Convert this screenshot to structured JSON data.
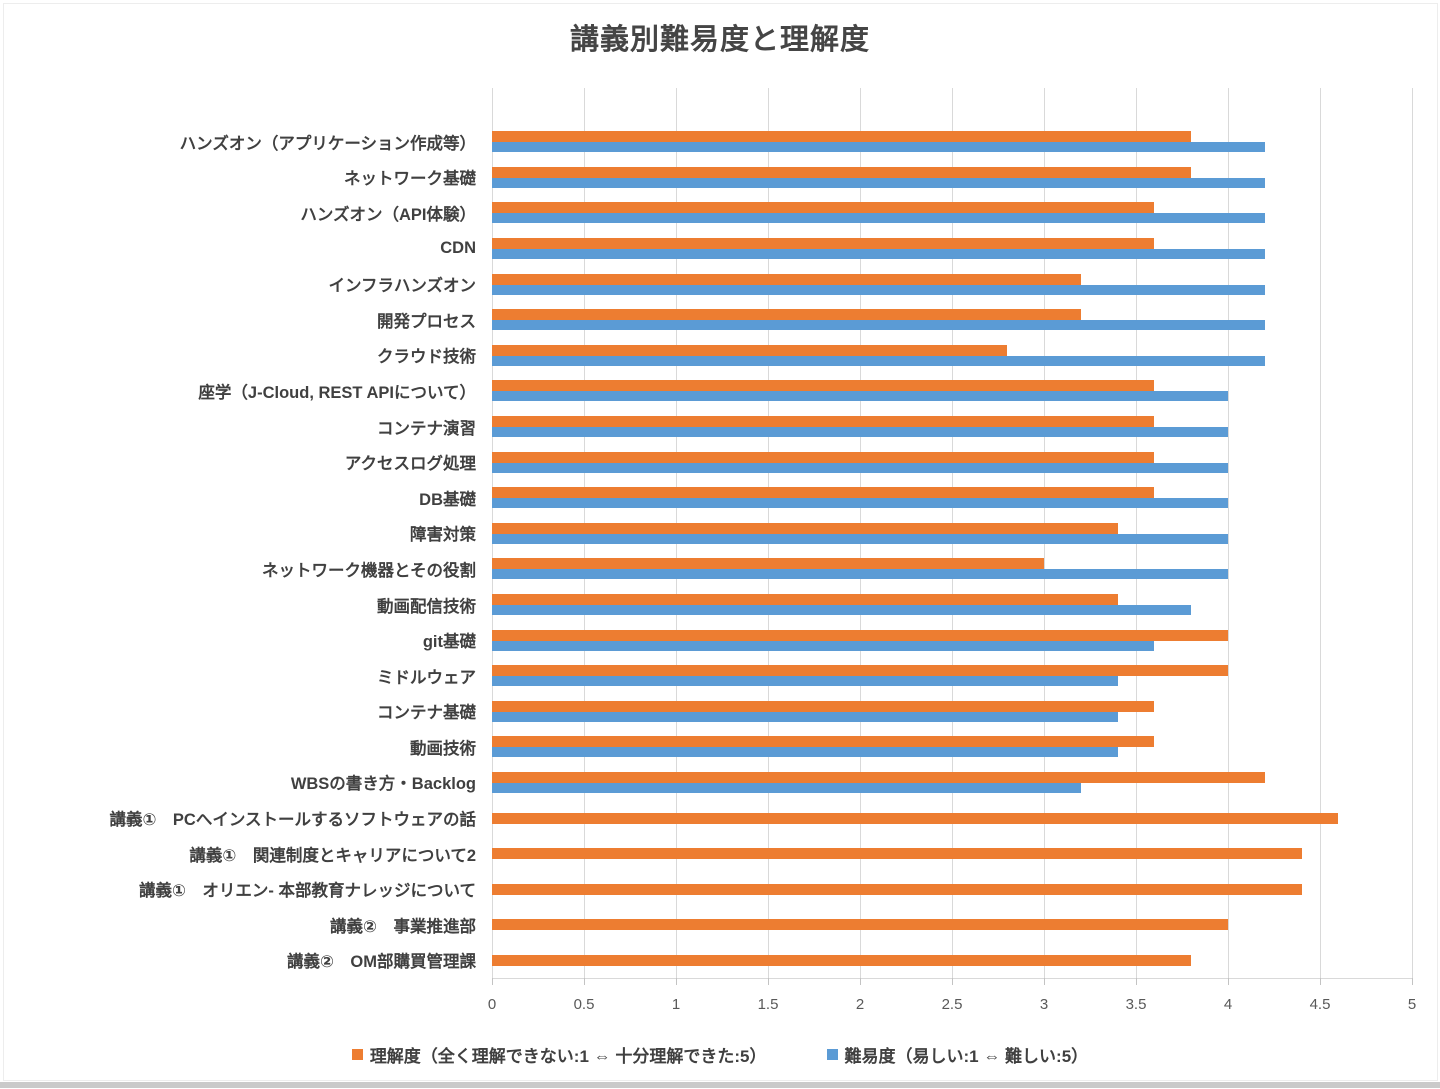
{
  "title": "講義別難易度と理解度",
  "chart_data": {
    "type": "bar",
    "orientation": "horizontal",
    "title": "講義別難易度と理解度",
    "categories": [
      "ハンズオン（アプリケーション作成等）",
      "ネットワーク基礎",
      "ハンズオン（API体験）",
      "CDN",
      "インフラハンズオン",
      "開発プロセス",
      "クラウド技術",
      "座学（J-Cloud, REST APIについて）",
      "コンテナ演習",
      "アクセスログ処理",
      "DB基礎",
      "障害対策",
      "ネットワーク機器とその役割",
      "動画配信技術",
      "git基礎",
      "ミドルウェア",
      "コンテナ基礎",
      "動画技術",
      "WBSの書き方・Backlog",
      "講義①　PCへインストールするソフトウェアの話",
      "講義①　関連制度とキャリアについて2",
      "講義①　オリエン- 本部教育ナレッジについて",
      "講義②　事業推進部",
      "講義②　OM部購買管理課"
    ],
    "series": [
      {
        "name": "理解度（全く理解できない:1 ⇔ 十分理解できた:5）",
        "color": "#ED7D31",
        "values": [
          3.8,
          3.8,
          3.6,
          3.6,
          3.2,
          3.2,
          2.8,
          3.6,
          3.6,
          3.6,
          3.6,
          3.4,
          3.0,
          3.4,
          4.0,
          4.0,
          3.6,
          3.6,
          4.2,
          4.6,
          4.4,
          4.4,
          4.0,
          3.8
        ]
      },
      {
        "name": "難易度（易しい:1 ⇔ 難しい:5）",
        "color": "#5B9BD5",
        "values": [
          4.2,
          4.2,
          4.2,
          4.2,
          4.2,
          4.2,
          4.2,
          4.0,
          4.0,
          4.0,
          4.0,
          4.0,
          4.0,
          3.8,
          3.6,
          3.4,
          3.4,
          3.4,
          3.2,
          null,
          null,
          null,
          null,
          null
        ]
      }
    ],
    "xlim": [
      0,
      5
    ],
    "x_ticks": [
      "0",
      "0.5",
      "1",
      "1.5",
      "2",
      "2.5",
      "3",
      "3.5",
      "4",
      "4.5",
      "5"
    ],
    "grid": true,
    "legend_position": "bottom",
    "gridline_color": "#D9D9D9",
    "axis_text_color": "#595959"
  }
}
